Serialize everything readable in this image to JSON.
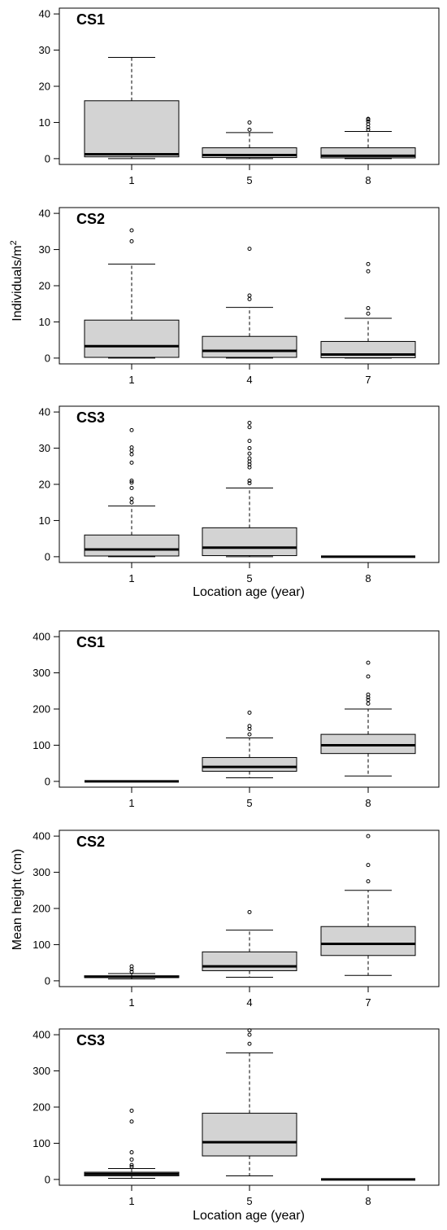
{
  "chart_data": [
    {
      "type": "boxplot",
      "panel": "CS1",
      "group": "density",
      "categories": [
        "1",
        "5",
        "8"
      ],
      "ylim": [
        0,
        40
      ],
      "yticks": [
        0,
        10,
        20,
        30,
        40
      ],
      "boxes": [
        {
          "lower_whisker": 0,
          "q1": 0.5,
          "median": 1.2,
          "q3": 16,
          "upper_whisker": 28,
          "outliers": []
        },
        {
          "lower_whisker": 0,
          "q1": 0.3,
          "median": 1.0,
          "q3": 3,
          "upper_whisker": 7.2,
          "outliers": [
            8,
            10
          ]
        },
        {
          "lower_whisker": 0,
          "q1": 0.2,
          "median": 0.8,
          "q3": 3,
          "upper_whisker": 7.5,
          "outliers": [
            8,
            8.7,
            9.5,
            10.3,
            10.8,
            11
          ]
        }
      ]
    },
    {
      "type": "boxplot",
      "panel": "CS2",
      "group": "density",
      "categories": [
        "1",
        "4",
        "7"
      ],
      "ylim": [
        0,
        40
      ],
      "yticks": [
        0,
        10,
        20,
        30,
        40
      ],
      "boxes": [
        {
          "lower_whisker": 0,
          "q1": 0.2,
          "median": 3.3,
          "q3": 10.5,
          "upper_whisker": 26,
          "outliers": [
            32.3,
            35.3
          ]
        },
        {
          "lower_whisker": 0,
          "q1": 0.2,
          "median": 2.0,
          "q3": 6,
          "upper_whisker": 14,
          "outliers": [
            16.3,
            17.3,
            30.2
          ]
        },
        {
          "lower_whisker": 0,
          "q1": 0.1,
          "median": 1.0,
          "q3": 4.6,
          "upper_whisker": 11,
          "outliers": [
            12.3,
            13.8,
            24,
            26
          ]
        }
      ]
    },
    {
      "type": "boxplot",
      "panel": "CS3",
      "group": "density",
      "categories": [
        "1",
        "5",
        "8"
      ],
      "ylim": [
        0,
        40
      ],
      "yticks": [
        0,
        10,
        20,
        30,
        40
      ],
      "boxes": [
        {
          "lower_whisker": 0,
          "q1": 0.2,
          "median": 2.0,
          "q3": 6,
          "upper_whisker": 14,
          "outliers": [
            15,
            16,
            19,
            20.5,
            21,
            26,
            28.3,
            29.3,
            30.2,
            35
          ]
        },
        {
          "lower_whisker": 0,
          "q1": 0.3,
          "median": 2.5,
          "q3": 8,
          "upper_whisker": 19,
          "outliers": [
            20.3,
            21,
            24.7,
            25.5,
            26.3,
            27.2,
            28.5,
            30,
            32,
            35.8,
            37
          ]
        },
        {
          "lower_whisker": 0,
          "q1": 0,
          "median": 0,
          "q3": 0,
          "upper_whisker": 0,
          "outliers": []
        }
      ]
    },
    {
      "type": "boxplot",
      "panel": "CS1",
      "group": "height",
      "categories": [
        "1",
        "5",
        "8"
      ],
      "ylim": [
        0,
        400
      ],
      "yticks": [
        0,
        100,
        200,
        300,
        400
      ],
      "boxes": [
        {
          "lower_whisker": 0,
          "q1": 0,
          "median": 0,
          "q3": 0,
          "upper_whisker": 0,
          "outliers": []
        },
        {
          "lower_whisker": 10,
          "q1": 28,
          "median": 40,
          "q3": 66,
          "upper_whisker": 120,
          "outliers": [
            130,
            145,
            153,
            190
          ]
        },
        {
          "lower_whisker": 15,
          "q1": 77,
          "median": 100,
          "q3": 130,
          "upper_whisker": 200,
          "outliers": [
            215,
            225,
            232,
            240,
            290,
            328
          ]
        }
      ]
    },
    {
      "type": "boxplot",
      "panel": "CS2",
      "group": "height",
      "categories": [
        "1",
        "4",
        "7"
      ],
      "ylim": [
        0,
        400
      ],
      "yticks": [
        0,
        100,
        200,
        300,
        400
      ],
      "boxes": [
        {
          "lower_whisker": 5,
          "q1": 9,
          "median": 11,
          "q3": 14,
          "upper_whisker": 20,
          "outliers": [
            25,
            32,
            40
          ]
        },
        {
          "lower_whisker": 10,
          "q1": 28,
          "median": 40,
          "q3": 80,
          "upper_whisker": 140,
          "outliers": [
            190
          ]
        },
        {
          "lower_whisker": 15,
          "q1": 70,
          "median": 102,
          "q3": 150,
          "upper_whisker": 250,
          "outliers": [
            275,
            320,
            400
          ]
        }
      ]
    },
    {
      "type": "boxplot",
      "panel": "CS3",
      "group": "height",
      "categories": [
        "1",
        "5",
        "8"
      ],
      "ylim": [
        0,
        400
      ],
      "yticks": [
        0,
        100,
        200,
        300,
        400
      ],
      "boxes": [
        {
          "lower_whisker": 3,
          "q1": 10,
          "median": 15,
          "q3": 20,
          "upper_whisker": 30,
          "outliers": [
            35,
            40,
            55,
            75,
            160,
            190
          ]
        },
        {
          "lower_whisker": 10,
          "q1": 65,
          "median": 103,
          "q3": 183,
          "upper_whisker": 350,
          "outliers": [
            375,
            400,
            412
          ]
        },
        {
          "lower_whisker": 0,
          "q1": 0,
          "median": 0,
          "q3": 0,
          "upper_whisker": 0,
          "outliers": []
        }
      ]
    }
  ],
  "labels": {
    "density_ylabel": "Individuals/m",
    "density_ylabel_sup": "2",
    "height_ylabel": "Mean height (cm)",
    "xlabel_density": "Location age (year)",
    "xlabel_height": "Location age (year)"
  },
  "colors": {
    "box_fill": "#d3d3d3",
    "stroke": "#000000",
    "background": "#ffffff"
  }
}
